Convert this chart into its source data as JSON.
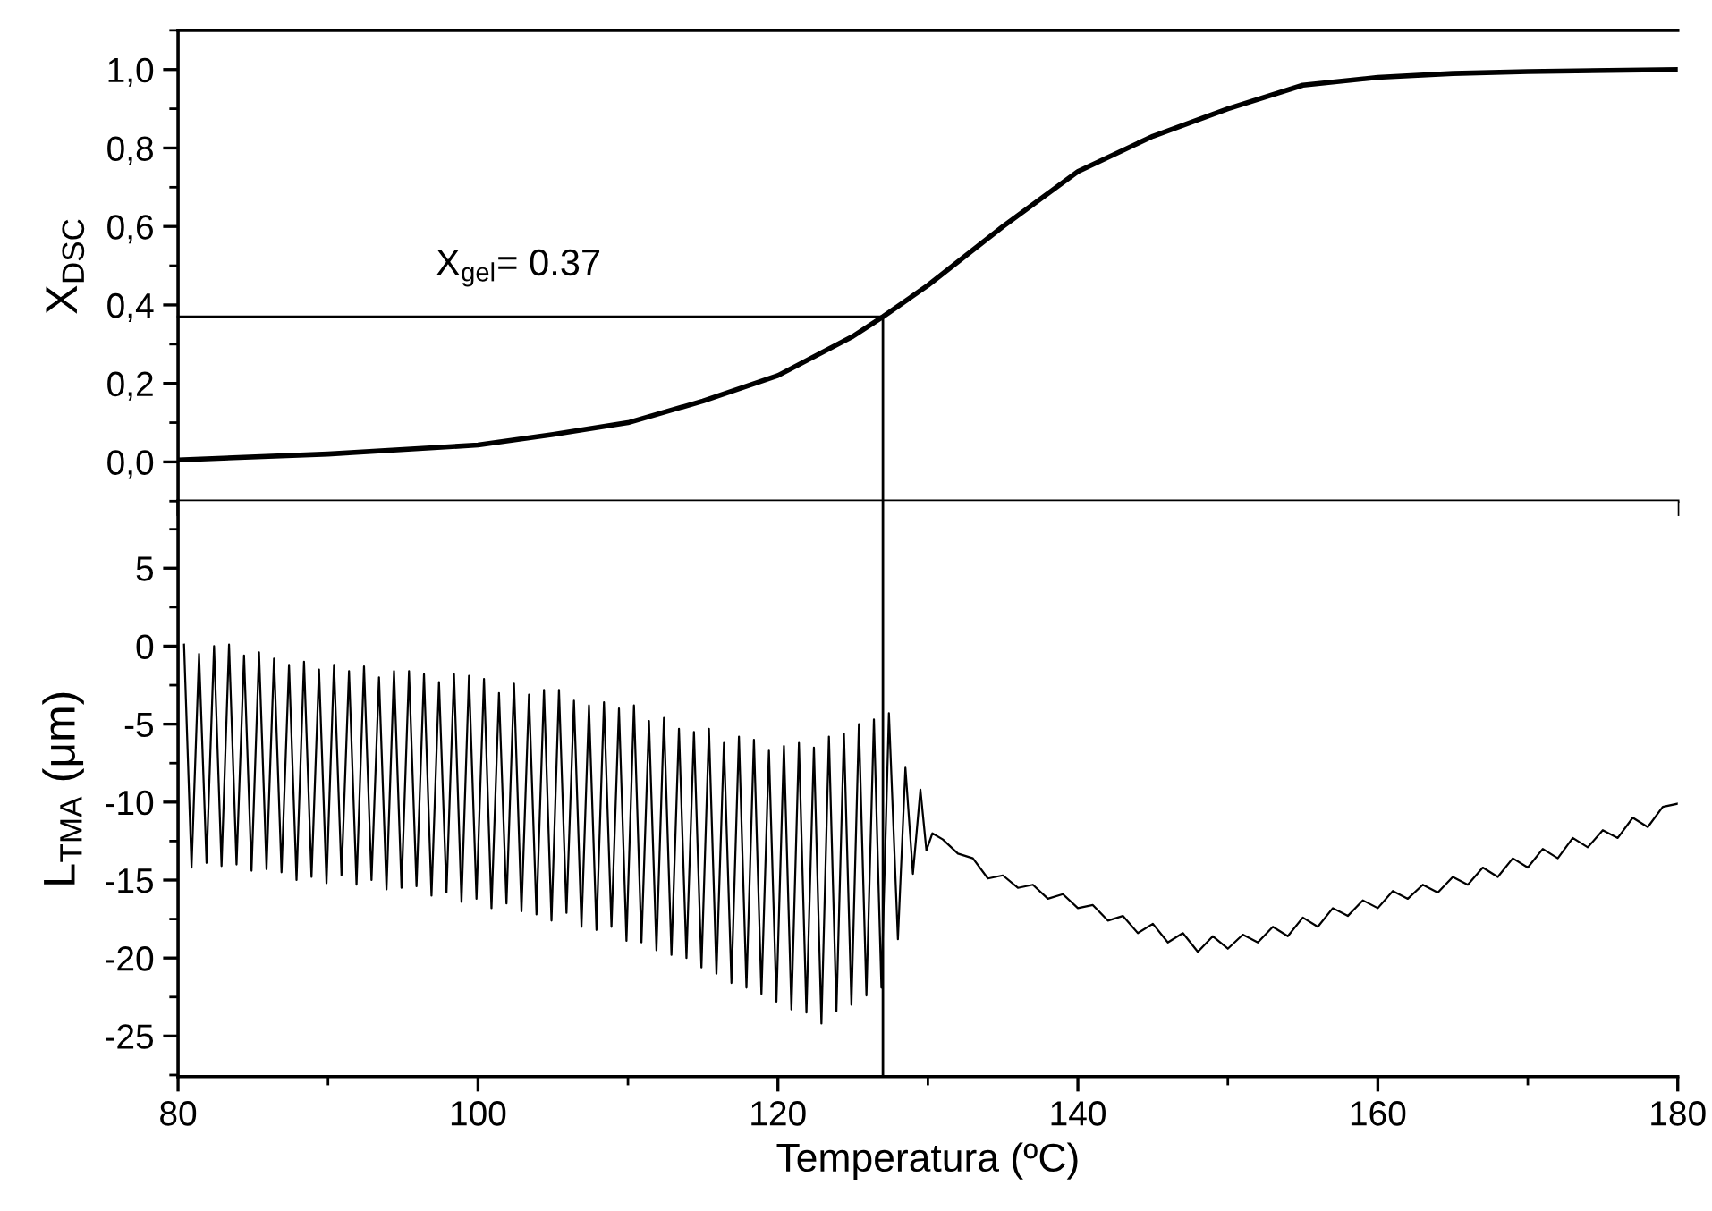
{
  "chart_data": [
    {
      "type": "line",
      "ylabel": "X$_{DSC}$",
      "x": [
        80,
        90,
        100,
        105,
        110,
        115,
        120,
        125,
        127,
        130,
        135,
        140,
        145,
        150,
        155,
        160,
        165,
        170,
        180
      ],
      "series": [
        {
          "color": "#000000",
          "values": [
            0.005,
            0.02,
            0.043,
            0.07,
            0.1,
            0.155,
            0.22,
            0.32,
            0.37,
            0.45,
            0.6,
            0.74,
            0.83,
            0.9,
            0.96,
            0.98,
            0.99,
            0.995,
            1.0
          ]
        }
      ],
      "xlim": [
        80,
        180
      ],
      "xticks": [
        80,
        100,
        120,
        140,
        160,
        180
      ],
      "ylim": [
        -0.1,
        1.1
      ],
      "yticks": [
        {
          "value": 0.0,
          "label": "0,0"
        },
        {
          "value": 0.2,
          "label": "0,2"
        },
        {
          "value": 0.4,
          "label": "0,4"
        },
        {
          "value": 0.6,
          "label": "0,6"
        },
        {
          "value": 0.8,
          "label": "0,8"
        },
        {
          "value": 1.0,
          "label": "1,0"
        }
      ],
      "tick_labels": "y",
      "grid": false,
      "legend": false,
      "ref_lines": [
        {
          "axis": "y",
          "value": 0.37
        },
        {
          "axis": "x",
          "value": 127
        }
      ],
      "annotations": [
        "X$_{gel}$= 0.37"
      ]
    },
    {
      "type": "line",
      "xlabel": "Temperatura (ºC)",
      "ylabel": "L$_{TMA}$ (μm)",
      "x": [
        80.4,
        80.9,
        81.4,
        81.9,
        82.4,
        82.9,
        83.4,
        83.9,
        84.4,
        84.9,
        85.4,
        85.9,
        86.4,
        86.9,
        87.4,
        87.9,
        88.4,
        88.9,
        89.4,
        89.9,
        90.4,
        90.9,
        91.4,
        91.9,
        92.4,
        92.9,
        93.4,
        93.9,
        94.4,
        94.9,
        95.4,
        95.9,
        96.4,
        96.9,
        97.4,
        97.9,
        98.4,
        98.9,
        99.4,
        99.9,
        100.4,
        100.9,
        101.4,
        101.9,
        102.4,
        102.9,
        103.4,
        103.9,
        104.4,
        104.9,
        105.4,
        105.9,
        106.4,
        106.9,
        107.4,
        107.9,
        108.4,
        108.9,
        109.4,
        109.9,
        110.4,
        110.9,
        111.4,
        111.9,
        112.4,
        112.9,
        113.4,
        113.9,
        114.4,
        114.9,
        115.4,
        115.9,
        116.4,
        116.9,
        117.4,
        117.9,
        118.4,
        118.9,
        119.4,
        119.9,
        120.4,
        120.9,
        121.4,
        121.9,
        122.4,
        122.9,
        123.4,
        123.9,
        124.4,
        124.9,
        125.4,
        125.9,
        126.4,
        126.9,
        127.4,
        128.0,
        128.5,
        129.0,
        129.5,
        129.9,
        130.3,
        131,
        132,
        133,
        134,
        135,
        136,
        137,
        138,
        139,
        140,
        141,
        142,
        143,
        144,
        145,
        146,
        147,
        148,
        149,
        150,
        151,
        152,
        153,
        154,
        155,
        156,
        157,
        158,
        159,
        160,
        161,
        162,
        163,
        164,
        165,
        166,
        167,
        168,
        169,
        170,
        171,
        172,
        173,
        174,
        175,
        176,
        177,
        178,
        179,
        180
      ],
      "series": [
        {
          "color": "#000000",
          "values": [
            0.1,
            -14.2,
            -0.5,
            -13.9,
            0.0,
            -14.1,
            0.1,
            -14.0,
            -0.6,
            -14.4,
            -0.4,
            -14.3,
            -0.8,
            -14.5,
            -1.2,
            -15.0,
            -1.0,
            -14.8,
            -1.5,
            -15.2,
            -1.2,
            -14.7,
            -1.6,
            -15.3,
            -1.3,
            -15.0,
            -2.0,
            -15.6,
            -1.6,
            -15.5,
            -1.6,
            -15.4,
            -1.8,
            -16.0,
            -2.3,
            -15.8,
            -1.8,
            -16.4,
            -1.9,
            -16.2,
            -2.1,
            -16.8,
            -3.0,
            -16.5,
            -2.4,
            -17.0,
            -3.1,
            -17.2,
            -2.8,
            -17.6,
            -2.8,
            -17.1,
            -3.5,
            -18.0,
            -3.8,
            -18.2,
            -3.6,
            -18.0,
            -4.0,
            -18.9,
            -3.8,
            -19.0,
            -4.8,
            -19.5,
            -4.6,
            -19.8,
            -5.3,
            -20.0,
            -5.5,
            -20.6,
            -5.3,
            -21.0,
            -6.2,
            -21.6,
            -5.8,
            -21.9,
            -6.0,
            -22.3,
            -6.7,
            -22.8,
            -6.4,
            -23.3,
            -6.2,
            -23.5,
            -6.5,
            -24.2,
            -5.8,
            -23.4,
            -5.6,
            -23.0,
            -5.0,
            -22.4,
            -4.7,
            -21.9,
            -4.3,
            -18.8,
            -7.8,
            -14.6,
            -9.2,
            -13.1,
            -12.0,
            -12.4,
            -13.3,
            -13.6,
            -14.9,
            -14.7,
            -15.5,
            -15.3,
            -16.2,
            -15.9,
            -16.8,
            -16.6,
            -17.6,
            -17.3,
            -18.4,
            -17.8,
            -19.0,
            -18.4,
            -19.6,
            -18.6,
            -19.4,
            -18.5,
            -19.0,
            -18.0,
            -18.6,
            -17.4,
            -18.0,
            -16.8,
            -17.3,
            -16.3,
            -16.8,
            -15.7,
            -16.2,
            -15.3,
            -15.8,
            -14.8,
            -15.3,
            -14.2,
            -14.8,
            -13.6,
            -14.2,
            -13.0,
            -13.6,
            -12.3,
            -12.9,
            -11.8,
            -12.3,
            -11.0,
            -11.6,
            -10.3,
            -10.1
          ]
        }
      ],
      "xlim": [
        80,
        180
      ],
      "xticks": [
        80,
        100,
        120,
        140,
        160,
        180
      ],
      "ylim": [
        -27.6,
        9.3
      ],
      "yticks": [
        5,
        0,
        -5,
        -10,
        -15,
        -20,
        -25
      ],
      "grid": false,
      "legend": false,
      "ref_lines": [
        {
          "axis": "x",
          "value": 127
        }
      ]
    }
  ]
}
